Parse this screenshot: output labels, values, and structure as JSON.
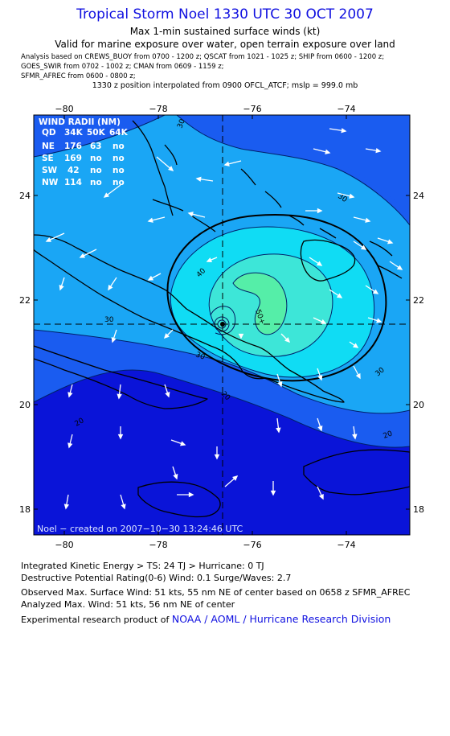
{
  "header": {
    "title": "Tropical Storm Noel 1330 UTC 30 OCT 2007",
    "subtitle": "Max 1-min sustained surface winds (kt)",
    "valid_for": "Valid for marine exposure over water, open terrain exposure over land",
    "analysis_line1": "Analysis based on  CREWS_BUOY from 0700 - 1200 z;  QSCAT from 1021 - 1025 z;  SHIP from 0600 - 1200 z;",
    "analysis_line2": "GOES_SWIR from 0702 - 1002 z;  CMAN from 0609 - 1159 z;",
    "analysis_line3": "SFMR_AFREC from 0600 - 0800 z;",
    "position_note": "1330 z position interpolated from 0900 OFCL_ATCF; mslp = 999.0 mb"
  },
  "map": {
    "lon_ticks": [
      "−80",
      "−78",
      "−76",
      "−74"
    ],
    "lat_ticks": [
      "24",
      "22",
      "20",
      "18"
    ],
    "center_lon": -76.6,
    "center_lat": 21.55,
    "contour_labels": [
      "30",
      "30",
      "30",
      "30",
      "30",
      "40",
      "20",
      "20",
      "20",
      "50+"
    ],
    "colors": {
      "lt20": "#0a14d8",
      "20_30": "#1a5cf0",
      "30_40": "#1aa6f5",
      "40_50": "#10dcf4",
      "gt50": "#40f0a0",
      "core": "#70f0c0"
    }
  },
  "wind_radii": {
    "title": "WIND RADII (NM)",
    "header": [
      "QD",
      "34K",
      "50K",
      "64K"
    ],
    "rows": [
      [
        "NE",
        "176",
        "63",
        "no"
      ],
      [
        "SE",
        "169",
        "no",
        "no"
      ],
      [
        "SW",
        "42",
        "no",
        "no"
      ],
      [
        "NW",
        "114",
        "no",
        "no"
      ]
    ]
  },
  "credit": "Noel − created on 2007−10−30 13:24:46 UTC",
  "footer": {
    "ike": "Integrated Kinetic Energy > TS: 24 TJ   > Hurricane: 0 TJ",
    "dpr": "Destructive Potential Rating(0-6)   Wind: 0.1 Surge/Waves: 2.7",
    "observed": "Observed Max. Surface Wind: 51 kts, 55 nm NE of center based on 0658 z SFMR_AFREC",
    "analyzed": "Analyzed Max. Wind: 51 kts, 56 nm NE of center",
    "product_prefix": "Experimental research product of",
    "product_org": "NOAA / AOML / Hurricane Research Division"
  }
}
